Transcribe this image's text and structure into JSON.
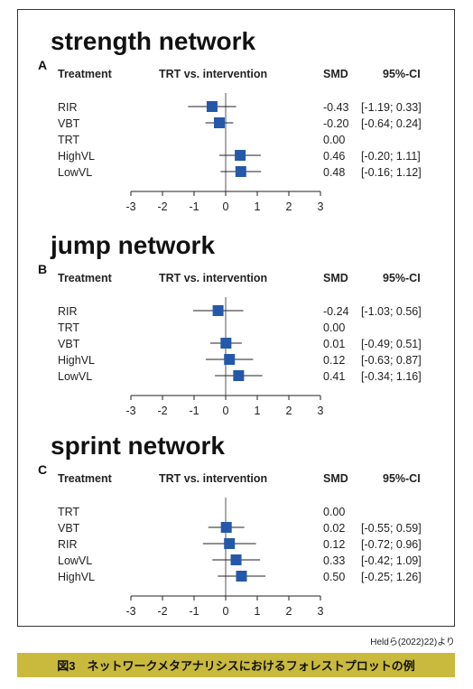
{
  "figure": {
    "credit": "Heldら(2022)22)より",
    "caption": "図3　ネットワークメタアナリシスにおけるフォレストプロットの例"
  },
  "header": {
    "treatment": "Treatment",
    "comparison": "TRT vs. intervention",
    "smd": "SMD",
    "ci": "95%-CI"
  },
  "colors": {
    "marker": "#2458a8",
    "whisker": "#222222",
    "caption_bg": "#c9b93c"
  },
  "chart_data": [
    {
      "type": "forest",
      "panel_label": "A",
      "title": "strength network",
      "x_ticks": [
        -3,
        -2,
        -1,
        0,
        1,
        2,
        3
      ],
      "xlim": [
        -3,
        3
      ],
      "reference_line": 0,
      "rows": [
        {
          "treatment": "RIR",
          "smd": -0.43,
          "lower": -1.19,
          "upper": 0.33,
          "smd_text": "-0.43",
          "ci_text": "[-1.19; 0.33]"
        },
        {
          "treatment": "VBT",
          "smd": -0.2,
          "lower": -0.64,
          "upper": 0.24,
          "smd_text": "-0.20",
          "ci_text": "[-0.64; 0.24]"
        },
        {
          "treatment": "TRT",
          "smd": 0.0,
          "lower": null,
          "upper": null,
          "smd_text": "0.00",
          "ci_text": ""
        },
        {
          "treatment": "HighVL",
          "smd": 0.46,
          "lower": -0.2,
          "upper": 1.11,
          "smd_text": "0.46",
          "ci_text": "[-0.20; 1.11]"
        },
        {
          "treatment": "LowVL",
          "smd": 0.48,
          "lower": -0.16,
          "upper": 1.12,
          "smd_text": "0.48",
          "ci_text": "[-0.16; 1.12]"
        }
      ]
    },
    {
      "type": "forest",
      "panel_label": "B",
      "title": "jump network",
      "x_ticks": [
        -3,
        -2,
        -1,
        0,
        1,
        2,
        3
      ],
      "xlim": [
        -3,
        3
      ],
      "reference_line": 0,
      "rows": [
        {
          "treatment": "RIR",
          "smd": -0.24,
          "lower": -1.03,
          "upper": 0.56,
          "smd_text": "-0.24",
          "ci_text": "[-1.03; 0.56]"
        },
        {
          "treatment": "TRT",
          "smd": 0.0,
          "lower": null,
          "upper": null,
          "smd_text": "0.00",
          "ci_text": ""
        },
        {
          "treatment": "VBT",
          "smd": 0.01,
          "lower": -0.49,
          "upper": 0.51,
          "smd_text": "0.01",
          "ci_text": "[-0.49; 0.51]"
        },
        {
          "treatment": "HighVL",
          "smd": 0.12,
          "lower": -0.63,
          "upper": 0.87,
          "smd_text": "0.12",
          "ci_text": "[-0.63; 0.87]"
        },
        {
          "treatment": "LowVL",
          "smd": 0.41,
          "lower": -0.34,
          "upper": 1.16,
          "smd_text": "0.41",
          "ci_text": "[-0.34; 1.16]"
        }
      ]
    },
    {
      "type": "forest",
      "panel_label": "C",
      "title": "sprint network",
      "x_ticks": [
        -3,
        -2,
        -1,
        0,
        1,
        2,
        3
      ],
      "xlim": [
        -3,
        3
      ],
      "reference_line": 0,
      "rows": [
        {
          "treatment": "TRT",
          "smd": 0.0,
          "lower": null,
          "upper": null,
          "smd_text": "0.00",
          "ci_text": ""
        },
        {
          "treatment": "VBT",
          "smd": 0.02,
          "lower": -0.55,
          "upper": 0.59,
          "smd_text": "0.02",
          "ci_text": "[-0.55; 0.59]"
        },
        {
          "treatment": "RIR",
          "smd": 0.12,
          "lower": -0.72,
          "upper": 0.96,
          "smd_text": "0.12",
          "ci_text": "[-0.72; 0.96]"
        },
        {
          "treatment": "LowVL",
          "smd": 0.33,
          "lower": -0.42,
          "upper": 1.09,
          "smd_text": "0.33",
          "ci_text": "[-0.42; 1.09]"
        },
        {
          "treatment": "HighVL",
          "smd": 0.5,
          "lower": -0.25,
          "upper": 1.26,
          "smd_text": "0.50",
          "ci_text": "[-0.25; 1.26]"
        }
      ]
    }
  ]
}
